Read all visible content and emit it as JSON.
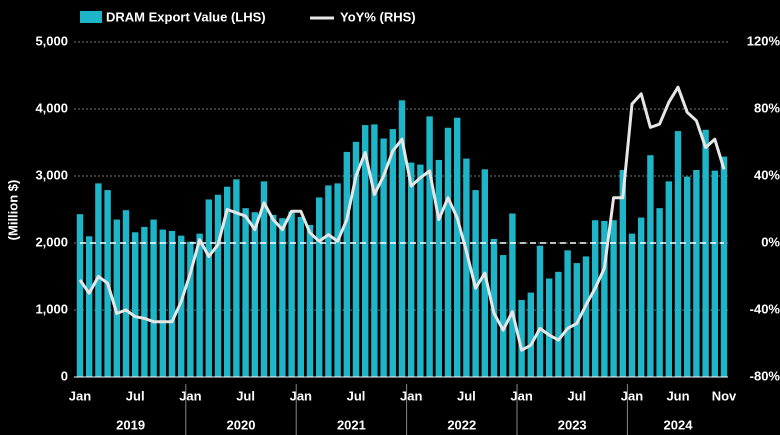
{
  "chart_data": {
    "type": "bar_line",
    "ylabel": "(Million $)",
    "categories": [
      "Jan",
      null,
      null,
      null,
      null,
      null,
      "Jul",
      null,
      null,
      null,
      null,
      null,
      "Jan",
      null,
      null,
      null,
      null,
      null,
      "Jul",
      null,
      null,
      null,
      null,
      null,
      "Jan",
      null,
      null,
      null,
      null,
      null,
      "Jul",
      null,
      null,
      null,
      null,
      null,
      "Jan",
      null,
      null,
      null,
      null,
      null,
      "Jul",
      null,
      null,
      null,
      null,
      null,
      "Jan",
      null,
      null,
      null,
      null,
      null,
      "Jul",
      null,
      null,
      null,
      null,
      null,
      "Jan",
      null,
      null,
      null,
      null,
      "Jun",
      null,
      null,
      null,
      null,
      "Nov"
    ],
    "years": [
      "2019",
      "2020",
      "2021",
      "2022",
      "2023",
      "2024"
    ],
    "series": [
      {
        "name": "DRAM Export Value (LHS)",
        "color": "#1fb5c9",
        "type": "bar",
        "values": [
          2430,
          2100,
          2890,
          2790,
          2350,
          2490,
          2160,
          2240,
          2350,
          2200,
          2180,
          2110,
          2020,
          2140,
          2650,
          2720,
          2840,
          2950,
          2520,
          2460,
          2920,
          2420,
          2370,
          2470,
          2390,
          2270,
          2680,
          2860,
          2890,
          3360,
          3510,
          3760,
          3770,
          3560,
          3700,
          4130,
          3200,
          3170,
          3890,
          3240,
          3720,
          3870,
          3260,
          2790,
          3100,
          2060,
          1820,
          2440,
          1150,
          1260,
          1960,
          1470,
          1570,
          1890,
          1700,
          1800,
          2340,
          2330,
          2340,
          3090,
          2140,
          2380,
          3310,
          2520,
          2920,
          3670,
          2990,
          3090,
          3690,
          3080,
          3290
        ]
      },
      {
        "name": "YoY% (RHS)",
        "color": "#e6e6e6",
        "type": "line",
        "axis": "y2",
        "values": [
          -22,
          -30,
          -20,
          -24,
          -42,
          -40,
          -44,
          -45,
          -47,
          -47,
          -47,
          -35,
          -18,
          2,
          -8,
          -1,
          20,
          18,
          16,
          8,
          24,
          14,
          8,
          19,
          19,
          6,
          1,
          5,
          1,
          14,
          40,
          54,
          29,
          40,
          55,
          62,
          34,
          39,
          43,
          14,
          27,
          15,
          -5,
          -27,
          -18,
          -42,
          -52,
          -41,
          -64,
          -61,
          -51,
          -55,
          -58,
          -51,
          -48,
          -37,
          -27,
          -15,
          27,
          27,
          83,
          89,
          69,
          71,
          84,
          93,
          78,
          73,
          57,
          62,
          44
        ]
      }
    ],
    "ylim": [
      0,
      5000
    ],
    "yticks": [
      0,
      {
        "value": 1000,
        "label": "1,000"
      },
      {
        "value": 2000,
        "label": "2,000"
      },
      {
        "value": 3000,
        "label": "3,000"
      },
      {
        "value": 4000,
        "label": "4,000"
      },
      {
        "value": 5000,
        "label": "5,000"
      }
    ],
    "y2lim": [
      -80,
      120
    ],
    "y2ticks": [
      {
        "value": -80,
        "label": "-80%"
      },
      {
        "value": -40,
        "label": "-40%"
      },
      {
        "value": 0,
        "label": "0%"
      },
      {
        "value": 40,
        "label": "40%"
      },
      {
        "value": 80,
        "label": "80%"
      },
      {
        "value": 120,
        "label": "120%"
      }
    ],
    "y2_reference": 0,
    "grid": true,
    "legend": "top-left"
  }
}
